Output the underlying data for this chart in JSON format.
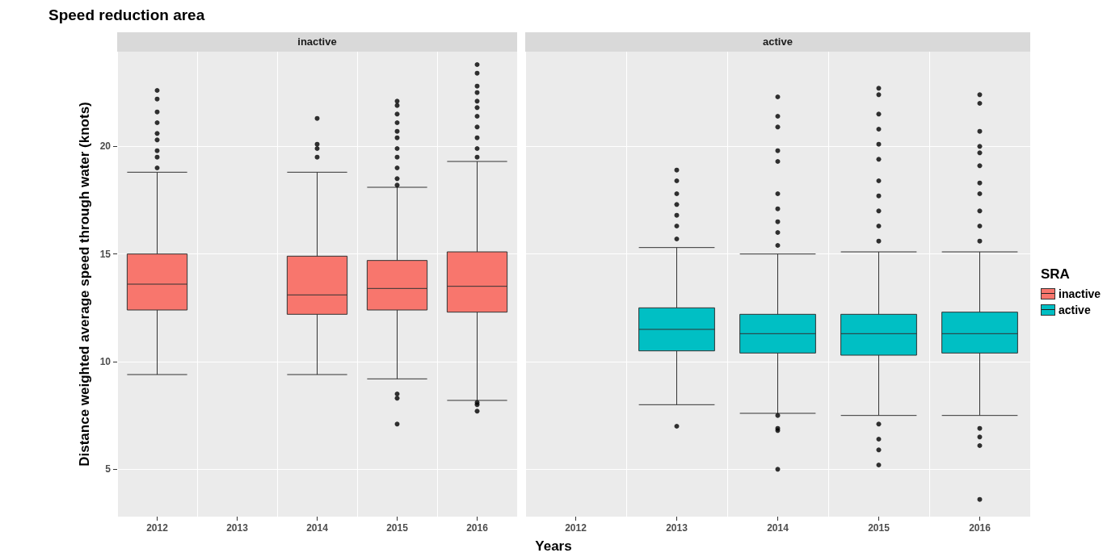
{
  "chart_data": [
    {
      "type": "box",
      "title": "Speed reduction area",
      "subtitle": "inactive",
      "xlabel": "Years",
      "ylabel": "Distance weighted average speed through water (knots)",
      "categories": [
        "2012",
        "2013",
        "2014",
        "2015",
        "2016"
      ],
      "ylim": [
        2.8,
        24.4
      ],
      "yticks": [
        5,
        10,
        15,
        20
      ],
      "grid": true,
      "legend": "right",
      "legend_title": "SRA",
      "series": [
        {
          "name": "inactive",
          "color": "#f8766d",
          "boxes": [
            {
              "low": 9.4,
              "q1": 12.4,
              "median": 13.6,
              "q3": 15.0,
              "high": 18.8,
              "outliers": [
                22.6,
                22.2,
                21.6,
                21.1,
                20.6,
                20.3,
                19.8,
                19.5,
                19.0
              ]
            },
            null,
            {
              "low": 9.4,
              "q1": 12.2,
              "median": 13.1,
              "q3": 14.9,
              "high": 18.8,
              "outliers": [
                21.3,
                20.1,
                19.9,
                19.5
              ]
            },
            {
              "low": 9.2,
              "q1": 12.4,
              "median": 13.4,
              "q3": 14.7,
              "high": 18.1,
              "outliers": [
                22.1,
                21.9,
                21.5,
                21.1,
                20.7,
                20.4,
                19.9,
                19.5,
                19.0,
                18.5,
                18.2,
                8.5,
                8.3,
                7.1
              ]
            },
            {
              "low": 8.2,
              "q1": 12.3,
              "median": 13.5,
              "q3": 15.1,
              "high": 19.3,
              "outliers": [
                23.8,
                23.4,
                22.8,
                22.5,
                22.1,
                21.8,
                21.4,
                20.9,
                20.4,
                19.9,
                19.5,
                8.1,
                8.0,
                7.7
              ]
            }
          ]
        }
      ]
    },
    {
      "type": "box",
      "subtitle": "active",
      "categories": [
        "2012",
        "2013",
        "2014",
        "2015",
        "2016"
      ],
      "ylim": [
        2.8,
        24.4
      ],
      "yticks": [
        5,
        10,
        15,
        20
      ],
      "grid": true,
      "legend": "right",
      "tick_labels": "x",
      "series": [
        {
          "name": "active",
          "color": "#00bfc4",
          "boxes": [
            null,
            {
              "low": 8.0,
              "q1": 10.5,
              "median": 11.5,
              "q3": 12.5,
              "high": 15.3,
              "outliers": [
                18.9,
                18.4,
                17.8,
                17.3,
                16.8,
                16.3,
                15.7,
                7.0
              ]
            },
            {
              "low": 7.6,
              "q1": 10.4,
              "median": 11.3,
              "q3": 12.2,
              "high": 15.0,
              "outliers": [
                22.3,
                21.4,
                20.9,
                19.8,
                19.3,
                17.8,
                17.1,
                16.5,
                16.0,
                15.4,
                7.5,
                6.9,
                6.8,
                5.0
              ]
            },
            {
              "low": 7.5,
              "q1": 10.3,
              "median": 11.3,
              "q3": 12.2,
              "high": 15.1,
              "outliers": [
                22.7,
                22.4,
                21.5,
                20.8,
                20.1,
                19.4,
                18.4,
                17.7,
                17.0,
                16.3,
                15.6,
                7.1,
                6.4,
                5.9,
                5.2
              ]
            },
            {
              "low": 7.5,
              "q1": 10.4,
              "median": 11.3,
              "q3": 12.3,
              "high": 15.1,
              "outliers": [
                22.4,
                22.0,
                20.7,
                20.0,
                19.7,
                19.1,
                18.3,
                17.8,
                17.0,
                16.3,
                15.6,
                6.9,
                6.5,
                6.1,
                3.6
              ]
            }
          ]
        }
      ]
    }
  ]
}
